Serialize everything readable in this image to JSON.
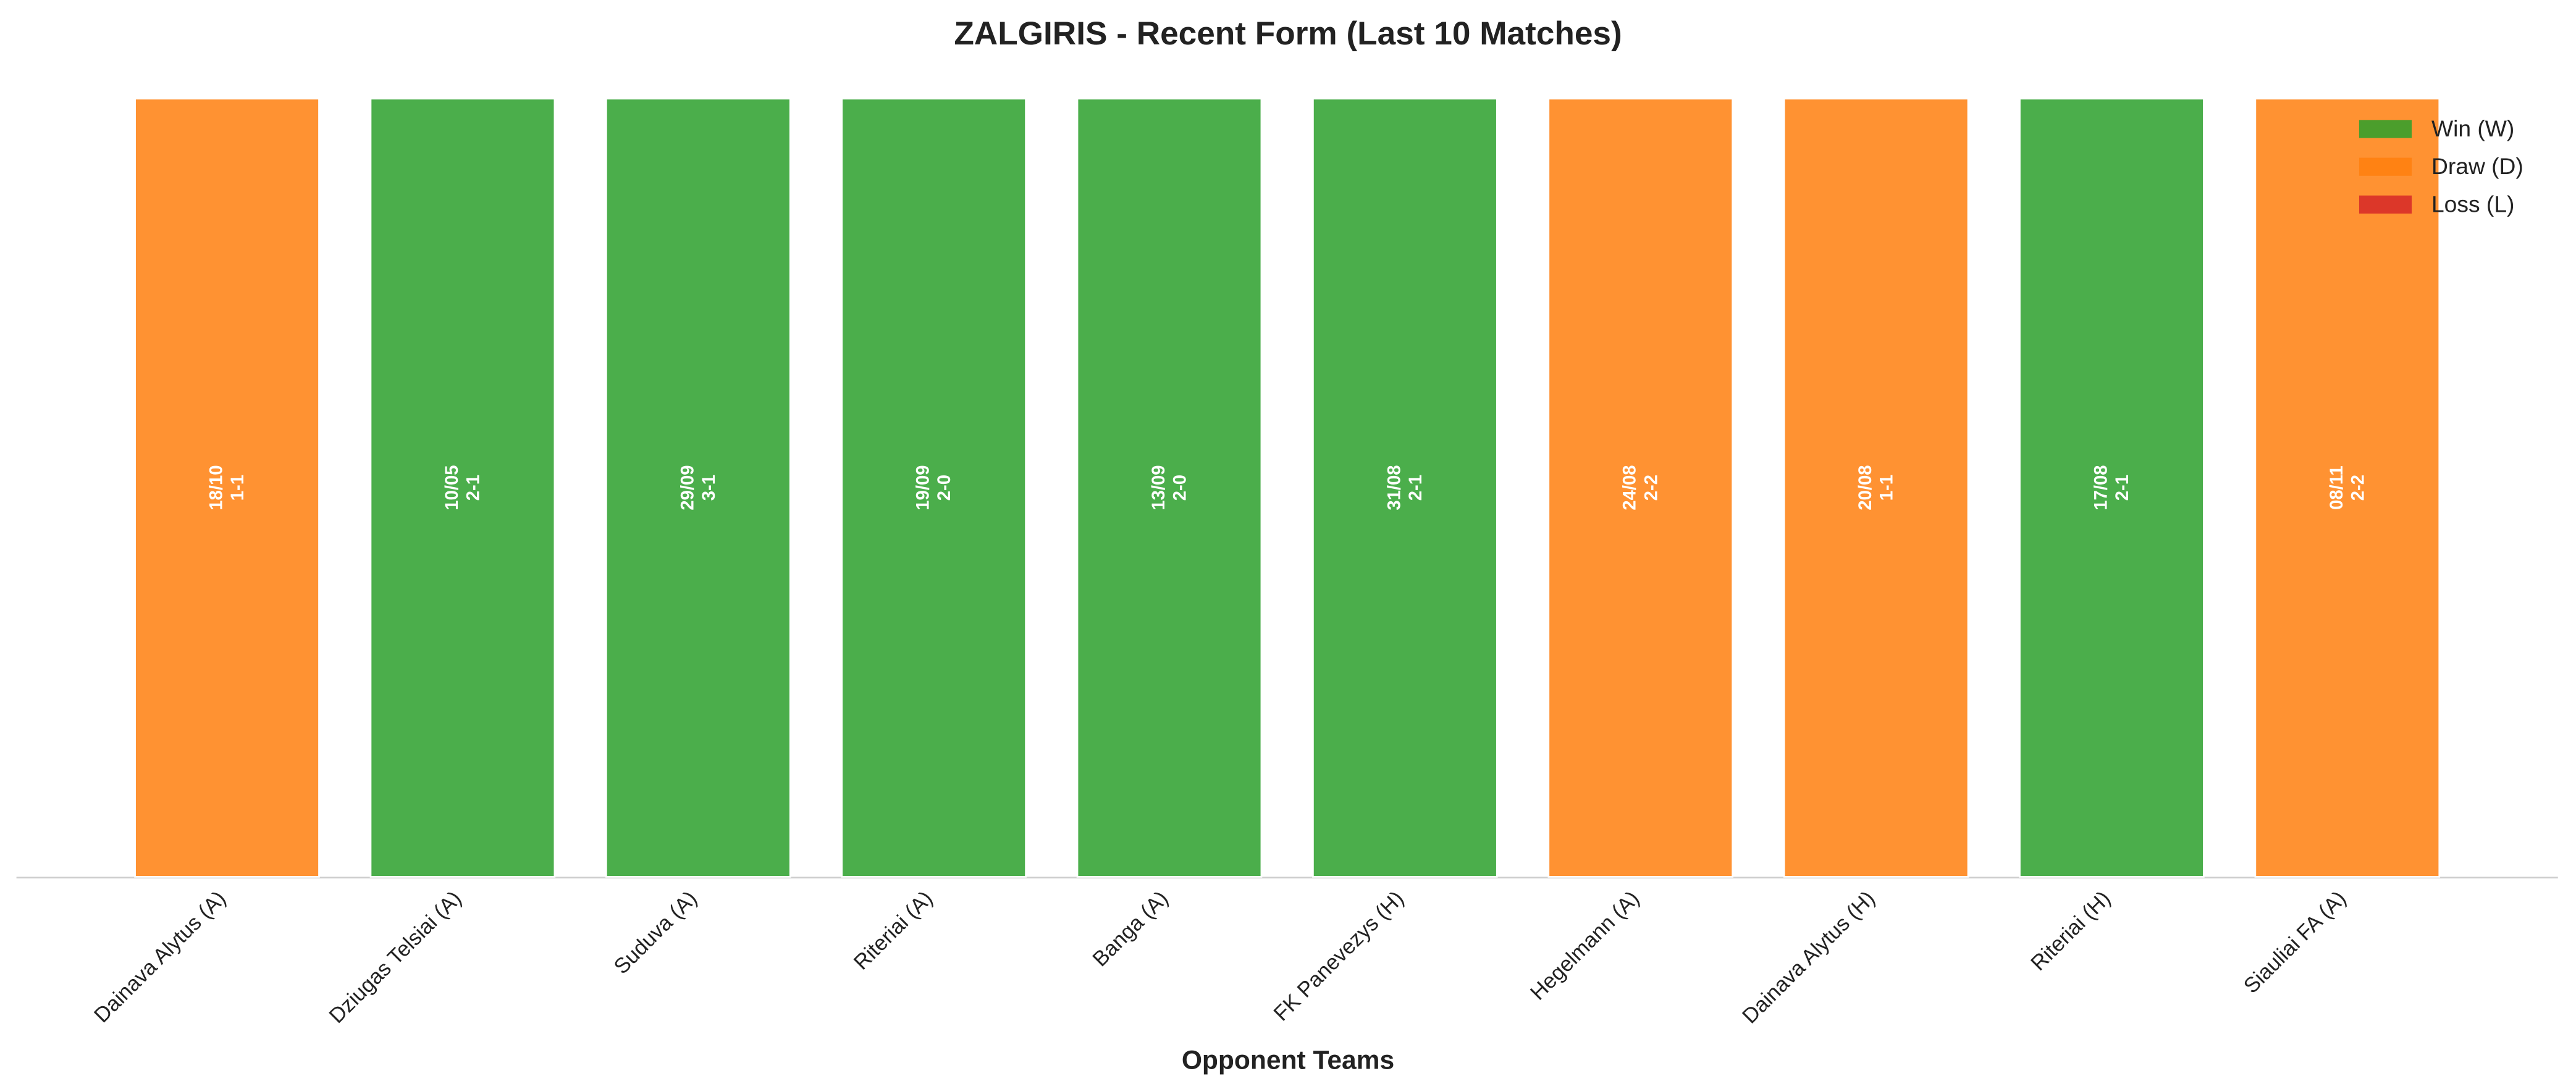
{
  "chart_data": {
    "type": "bar",
    "title": "ZALGIRIS - Recent Form (Last 10 Matches)",
    "x_label": "Opponent Teams",
    "categories": [
      "Dainava Alytus (A)",
      "Dziugas Telsiai (A)",
      "Suduva (A)",
      "Riteriai (A)",
      "Banga (A)",
      "FK Panevezys (H)",
      "Hegelmann (A)",
      "Dainava Alytus (H)",
      "Riteriai (H)",
      "Siauliai FA (A)"
    ],
    "dates": [
      "18/10",
      "10/05",
      "29/09",
      "19/09",
      "13/09",
      "31/08",
      "24/08",
      "20/08",
      "17/08",
      "08/11"
    ],
    "scores": [
      "1-1",
      "2-1",
      "3-1",
      "2-0",
      "2-0",
      "2-1",
      "2-2",
      "1-1",
      "2-1",
      "2-2"
    ],
    "series": [
      {
        "name": "Win (W)",
        "color": "#2ca02c",
        "values": [
          null,
          1,
          1,
          1,
          1,
          1,
          null,
          null,
          1,
          null
        ]
      },
      {
        "name": "Draw (D)",
        "color": "#ff7f0e",
        "values": [
          1,
          null,
          null,
          null,
          null,
          null,
          1,
          1,
          null,
          1
        ]
      },
      {
        "name": "Loss (L)",
        "color": "#d62728",
        "values": [
          null,
          null,
          null,
          null,
          null,
          null,
          null,
          null,
          null,
          null
        ]
      }
    ],
    "ylim": [
      0,
      1
    ],
    "legend": "upper right"
  }
}
